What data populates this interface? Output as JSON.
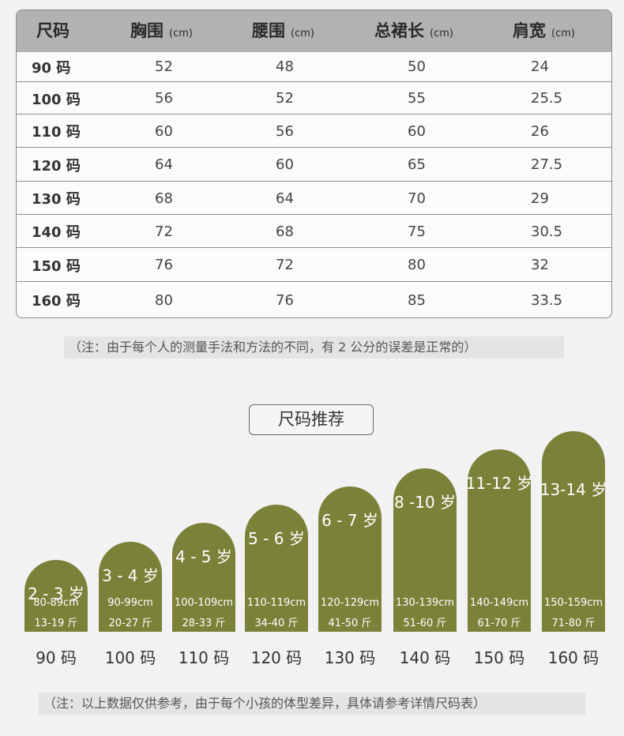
{
  "table": {
    "headers": [
      {
        "label": "尺码",
        "unit": ""
      },
      {
        "label": "胸围",
        "unit": "(cm)"
      },
      {
        "label": "腰围",
        "unit": "(cm)"
      },
      {
        "label": "总裙长",
        "unit": "(cm)"
      },
      {
        "label": "肩宽",
        "unit": "(cm)"
      }
    ],
    "rows": [
      [
        "90 码",
        "52",
        "48",
        "50",
        "24"
      ],
      [
        "100 码",
        "56",
        "52",
        "55",
        "25.5"
      ],
      [
        "110 码",
        "60",
        "56",
        "60",
        "26"
      ],
      [
        "120 码",
        "64",
        "60",
        "65",
        "27.5"
      ],
      [
        "130 码",
        "68",
        "64",
        "70",
        "29"
      ],
      [
        "140 码",
        "72",
        "68",
        "75",
        "30.5"
      ],
      [
        "150 码",
        "76",
        "72",
        "80",
        "32"
      ],
      [
        "160 码",
        "80",
        "76",
        "85",
        "33.5"
      ]
    ]
  },
  "note_measure": "（注：由于每个人的测量手法和方法的不同，有 2 公分的误差是正常的）",
  "recommend": {
    "title": "尺码推荐",
    "bar_color": "#7b8139",
    "bars": [
      {
        "age": "2 - 3 岁",
        "height": "80-89cm",
        "weight": "13-19 斤",
        "size": "90 码"
      },
      {
        "age": "3 - 4 岁",
        "height": "90-99cm",
        "weight": "20-27 斤",
        "size": "100 码"
      },
      {
        "age": "4 - 5 岁",
        "height": "100-109cm",
        "weight": "28-33 斤",
        "size": "110 码"
      },
      {
        "age": "5 - 6 岁",
        "height": "110-119cm",
        "weight": "34-40 斤",
        "size": "120 码"
      },
      {
        "age": "6 - 7 岁",
        "height": "120-129cm",
        "weight": "41-50 斤",
        "size": "130 码"
      },
      {
        "age": "8 -10 岁",
        "height": "130-139cm",
        "weight": "51-60 斤",
        "size": "140 码"
      },
      {
        "age": "11-12 岁",
        "height": "140-149cm",
        "weight": "61-70 斤",
        "size": "150 码"
      },
      {
        "age": "13-14 岁",
        "height": "150-159cm",
        "weight": "71-80 斤",
        "size": "160 码"
      }
    ]
  },
  "note_disclaimer": "（注：以上数据仅供参考，由于每个小孩的体型差异，具体请参考详情尺码表）"
}
